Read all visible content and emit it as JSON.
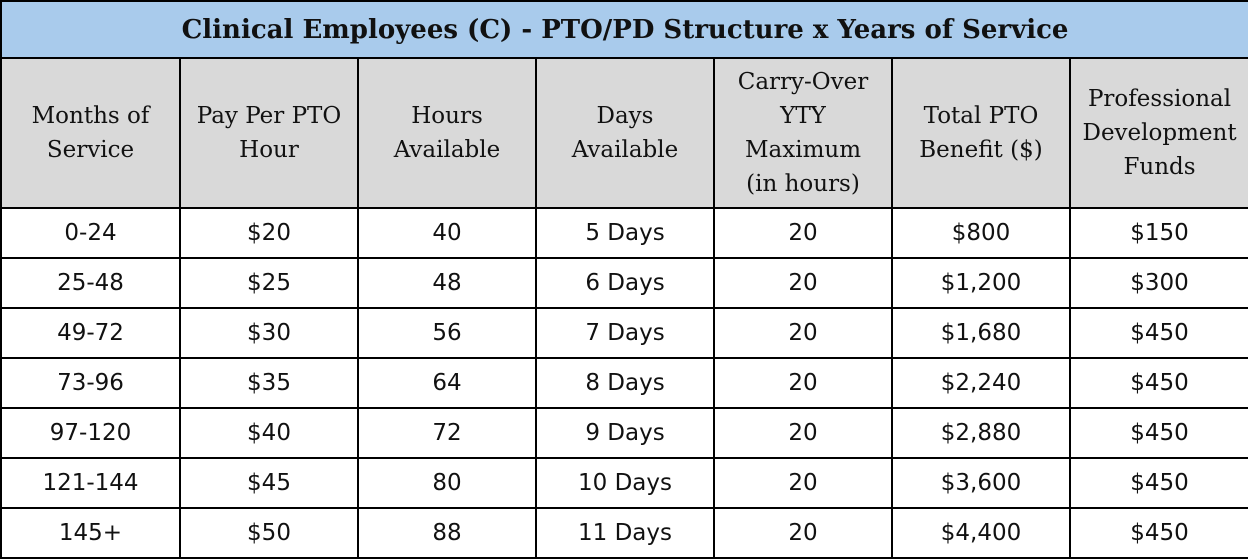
{
  "table": {
    "title": "Clinical Employees (C) - PTO/PD Structure x Years of Service",
    "headers": [
      [
        "Months of",
        "Service"
      ],
      [
        "Pay Per PTO",
        "Hour"
      ],
      [
        "Hours",
        "Available"
      ],
      [
        "Days",
        "Available"
      ],
      [
        "Carry-Over",
        "YTY",
        "Maximum",
        "(in hours)"
      ],
      [
        "Total PTO",
        "Benefit ($)"
      ],
      [
        "Professional",
        "Development",
        "Funds"
      ]
    ],
    "rows": [
      [
        "0-24",
        "$20",
        "40",
        "5 Days",
        "20",
        "$800",
        "$150"
      ],
      [
        "25-48",
        "$25",
        "48",
        "6 Days",
        "20",
        "$1,200",
        "$300"
      ],
      [
        "49-72",
        "$30",
        "56",
        "7 Days",
        "20",
        "$1,680",
        "$450"
      ],
      [
        "73-96",
        "$35",
        "64",
        "8 Days",
        "20",
        "$2,240",
        "$450"
      ],
      [
        "97-120",
        "$40",
        "72",
        "9 Days",
        "20",
        "$2,880",
        "$450"
      ],
      [
        "121-144",
        "$45",
        "80",
        "10 Days",
        "20",
        "$3,600",
        "$450"
      ],
      [
        "145+",
        "$50",
        "88",
        "11 Days",
        "20",
        "$4,400",
        "$450"
      ]
    ]
  }
}
